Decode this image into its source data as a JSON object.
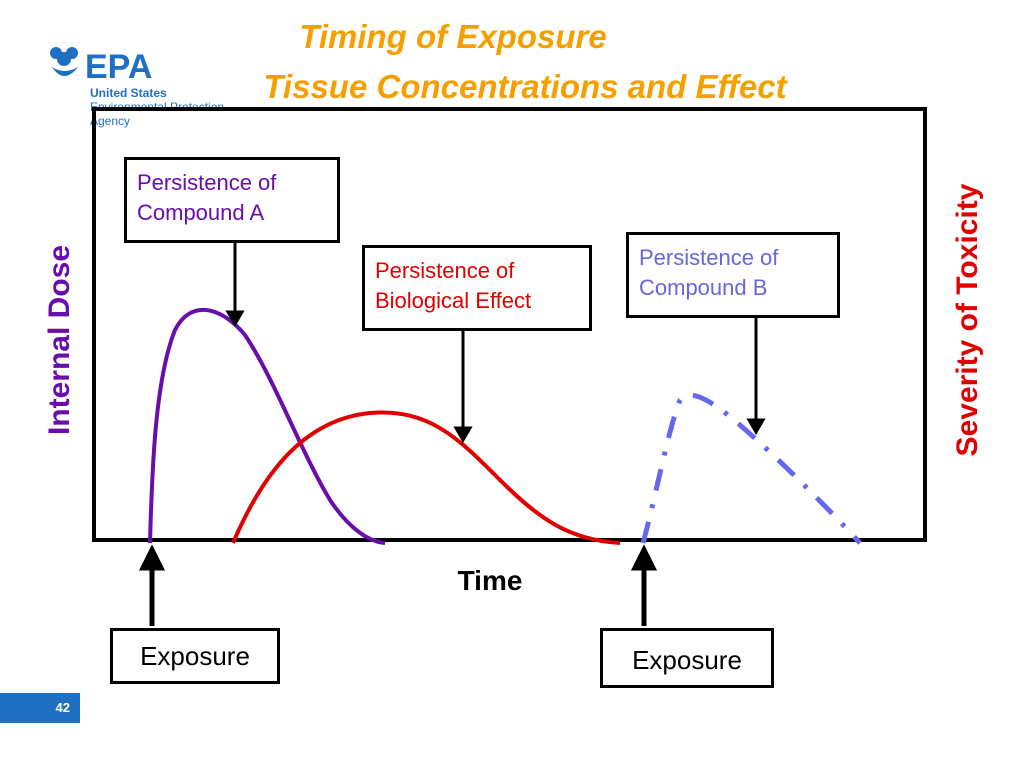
{
  "logo": {
    "mark": "EPA",
    "line1": "United States",
    "line2": "Environmental Protection",
    "line3": "Agency",
    "color": "#1f6fc2"
  },
  "title": {
    "line1": "Timing of Exposure",
    "line2": "Tissue Concentrations and Effect",
    "color": "#f5a000"
  },
  "axes": {
    "y_left": "Internal Dose",
    "y_right": "Severity of Toxicity",
    "x": "Time"
  },
  "callouts": {
    "compound_a": "Persistence of Compound A",
    "effect": "Persistence of Biological Effect",
    "compound_b": "Persistence of Compound B"
  },
  "exposures": [
    "Exposure",
    "Exposure"
  ],
  "curves": [
    {
      "name": "Compound A",
      "color": "#6a0dad",
      "style": "solid"
    },
    {
      "name": "Biological Effect",
      "color": "#e00000",
      "style": "solid"
    },
    {
      "name": "Compound B",
      "color": "#6666ee",
      "style": "dash-dot"
    }
  ],
  "page_number": "42"
}
